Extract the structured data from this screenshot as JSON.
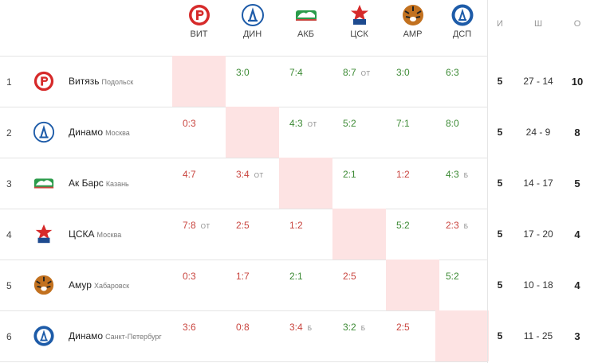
{
  "header": {
    "columns": [
      {
        "abbr": "ВИТ",
        "icon": "vityaz-logo-icon"
      },
      {
        "abbr": "ДИН",
        "icon": "dinamo-moscow-logo-icon"
      },
      {
        "abbr": "АКБ",
        "icon": "ak-bars-logo-icon"
      },
      {
        "abbr": "ЦСК",
        "icon": "cska-logo-icon"
      },
      {
        "abbr": "АМР",
        "icon": "amur-logo-icon"
      },
      {
        "abbr": "ДСП",
        "icon": "dinamo-spb-logo-icon"
      }
    ],
    "stats": {
      "games": "И",
      "goals": "Ш",
      "points": "О"
    }
  },
  "rows": [
    {
      "rank": "1",
      "team": "Витязь",
      "city": "Подольск",
      "icon": "vityaz-logo-icon",
      "cells": [
        {
          "self": true
        },
        {
          "score": "3:0",
          "suffix": "",
          "result": "win"
        },
        {
          "score": "7:4",
          "suffix": "",
          "result": "win"
        },
        {
          "score": "8:7",
          "suffix": "ОТ",
          "result": "win"
        },
        {
          "score": "3:0",
          "suffix": "",
          "result": "win"
        },
        {
          "score": "6:3",
          "suffix": "",
          "result": "win"
        }
      ],
      "games": "5",
      "goals": "27 - 14",
      "points": "10"
    },
    {
      "rank": "2",
      "team": "Динамо",
      "city": "Москва",
      "icon": "dinamo-moscow-logo-icon",
      "cells": [
        {
          "score": "0:3",
          "suffix": "",
          "result": "loss"
        },
        {
          "self": true
        },
        {
          "score": "4:3",
          "suffix": "ОТ",
          "result": "win"
        },
        {
          "score": "5:2",
          "suffix": "",
          "result": "win"
        },
        {
          "score": "7:1",
          "suffix": "",
          "result": "win"
        },
        {
          "score": "8:0",
          "suffix": "",
          "result": "win"
        }
      ],
      "games": "5",
      "goals": "24 - 9",
      "points": "8"
    },
    {
      "rank": "3",
      "team": "Ак Барс",
      "city": "Казань",
      "icon": "ak-bars-logo-icon",
      "cells": [
        {
          "score": "4:7",
          "suffix": "",
          "result": "loss"
        },
        {
          "score": "3:4",
          "suffix": "ОТ",
          "result": "loss"
        },
        {
          "self": true
        },
        {
          "score": "2:1",
          "suffix": "",
          "result": "win"
        },
        {
          "score": "1:2",
          "suffix": "",
          "result": "loss"
        },
        {
          "score": "4:3",
          "suffix": "Б",
          "result": "win"
        }
      ],
      "games": "5",
      "goals": "14 - 17",
      "points": "5"
    },
    {
      "rank": "4",
      "team": "ЦСКА",
      "city": "Москва",
      "icon": "cska-logo-icon",
      "cells": [
        {
          "score": "7:8",
          "suffix": "ОТ",
          "result": "loss"
        },
        {
          "score": "2:5",
          "suffix": "",
          "result": "loss"
        },
        {
          "score": "1:2",
          "suffix": "",
          "result": "loss"
        },
        {
          "self": true
        },
        {
          "score": "5:2",
          "suffix": "",
          "result": "win"
        },
        {
          "score": "2:3",
          "suffix": "Б",
          "result": "loss"
        }
      ],
      "games": "5",
      "goals": "17 - 20",
      "points": "4"
    },
    {
      "rank": "5",
      "team": "Амур",
      "city": "Хабаровск",
      "icon": "amur-logo-icon",
      "cells": [
        {
          "score": "0:3",
          "suffix": "",
          "result": "loss"
        },
        {
          "score": "1:7",
          "suffix": "",
          "result": "loss"
        },
        {
          "score": "2:1",
          "suffix": "",
          "result": "win"
        },
        {
          "score": "2:5",
          "suffix": "",
          "result": "loss"
        },
        {
          "self": true
        },
        {
          "score": "5:2",
          "suffix": "",
          "result": "win"
        }
      ],
      "games": "5",
      "goals": "10 - 18",
      "points": "4"
    },
    {
      "rank": "6",
      "team": "Динамо",
      "city": "Санкт-Петербург",
      "icon": "dinamo-spb-logo-icon",
      "cells": [
        {
          "score": "3:6",
          "suffix": "",
          "result": "loss"
        },
        {
          "score": "0:8",
          "suffix": "",
          "result": "loss"
        },
        {
          "score": "3:4",
          "suffix": "Б",
          "result": "loss"
        },
        {
          "score": "3:2",
          "suffix": "Б",
          "result": "win"
        },
        {
          "score": "2:5",
          "suffix": "",
          "result": "loss"
        },
        {
          "self": true
        }
      ],
      "games": "5",
      "goals": "11 - 25",
      "points": "3"
    }
  ],
  "colors": {
    "win": "#3c8a34",
    "loss": "#c9453f",
    "self_cell": "#fde3e3"
  }
}
